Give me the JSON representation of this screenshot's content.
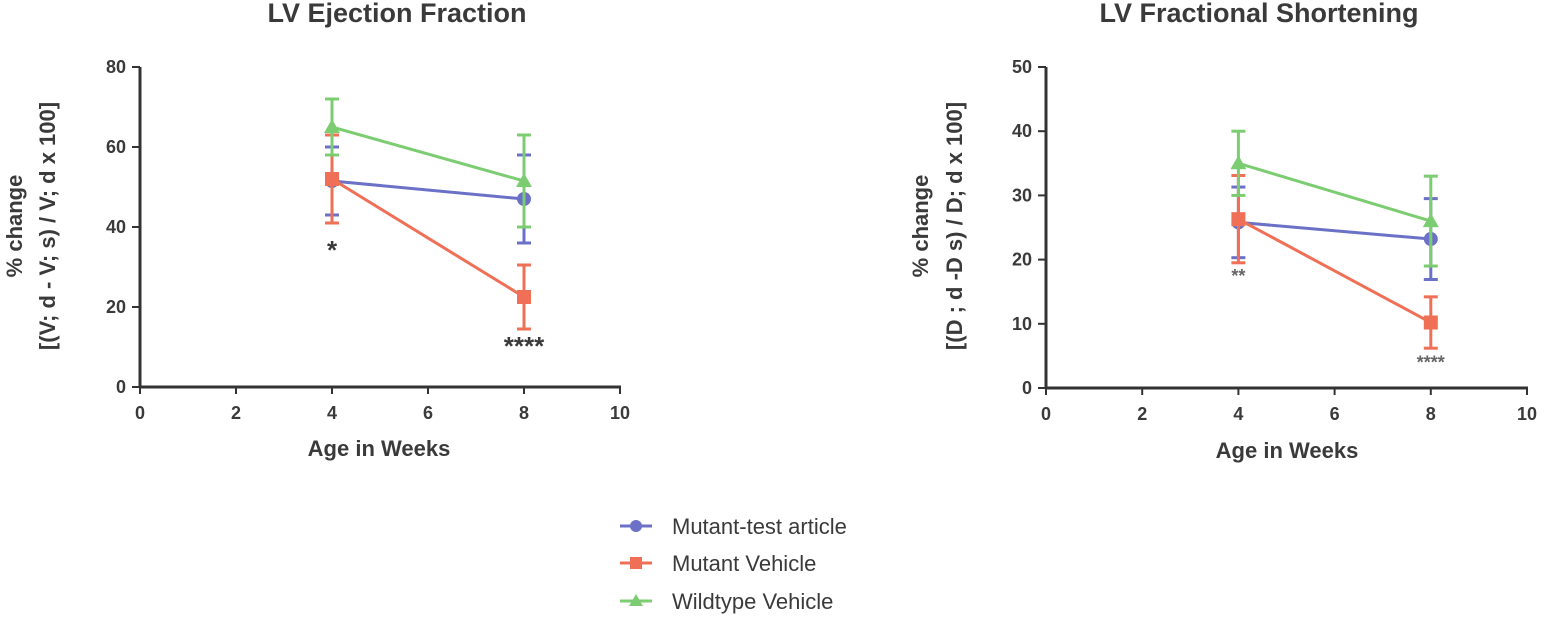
{
  "legend": [
    {
      "name": "Mutant-test article",
      "color": "#6b71c6",
      "marker": "circle"
    },
    {
      "name": "Mutant Vehicle",
      "color": "#ef7056",
      "marker": "square"
    },
    {
      "name": "Wildtype Vehicle",
      "color": "#7ccc72",
      "marker": "triangle"
    }
  ],
  "chart_data": [
    {
      "type": "line",
      "title": "LV Ejection Fraction",
      "xlabel": "Age in Weeks",
      "ylabel_line1": "% change",
      "ylabel_line2": "[(V; d - V; s) / V; d x 100]",
      "xlim": [
        0,
        10
      ],
      "ylim": [
        0,
        80
      ],
      "xticks": [
        0,
        2,
        4,
        6,
        8,
        10
      ],
      "yticks": [
        0,
        20,
        40,
        60,
        80
      ],
      "x": [
        4,
        8
      ],
      "series": [
        {
          "name": "Mutant-test article",
          "values": [
            51.5,
            47
          ],
          "errors": [
            8.5,
            11
          ]
        },
        {
          "name": "Mutant Vehicle",
          "values": [
            52,
            22.5
          ],
          "errors": [
            11,
            8
          ]
        },
        {
          "name": "Wildtype Vehicle",
          "values": [
            65,
            51.5
          ],
          "errors": [
            7,
            11.5
          ]
        }
      ],
      "annotations": [
        {
          "text": "*",
          "x": 4,
          "y": 32
        },
        {
          "text": "****",
          "x": 8,
          "y": 8
        }
      ]
    },
    {
      "type": "line",
      "title": "LV Fractional Shortening",
      "xlabel": "Age in Weeks",
      "ylabel_line1": "% change",
      "ylabel_line2": "[(D ; d -D s) / D; d x 100]",
      "xlim": [
        0,
        10
      ],
      "ylim": [
        0,
        50
      ],
      "xticks": [
        0,
        2,
        4,
        6,
        8,
        10
      ],
      "yticks": [
        0,
        10,
        20,
        30,
        40,
        50
      ],
      "x": [
        4,
        8
      ],
      "series": [
        {
          "name": "Mutant-test article",
          "values": [
            25.8,
            23.2
          ],
          "errors": [
            5.5,
            6.3
          ]
        },
        {
          "name": "Mutant Vehicle",
          "values": [
            26.3,
            10.2
          ],
          "errors": [
            6.8,
            4
          ]
        },
        {
          "name": "Wildtype Vehicle",
          "values": [
            35,
            26
          ],
          "errors": [
            5,
            7
          ]
        }
      ],
      "annotations": [
        {
          "text": "**",
          "x": 4,
          "y": 16.5
        },
        {
          "text": "****",
          "x": 8,
          "y": 3
        }
      ]
    }
  ]
}
